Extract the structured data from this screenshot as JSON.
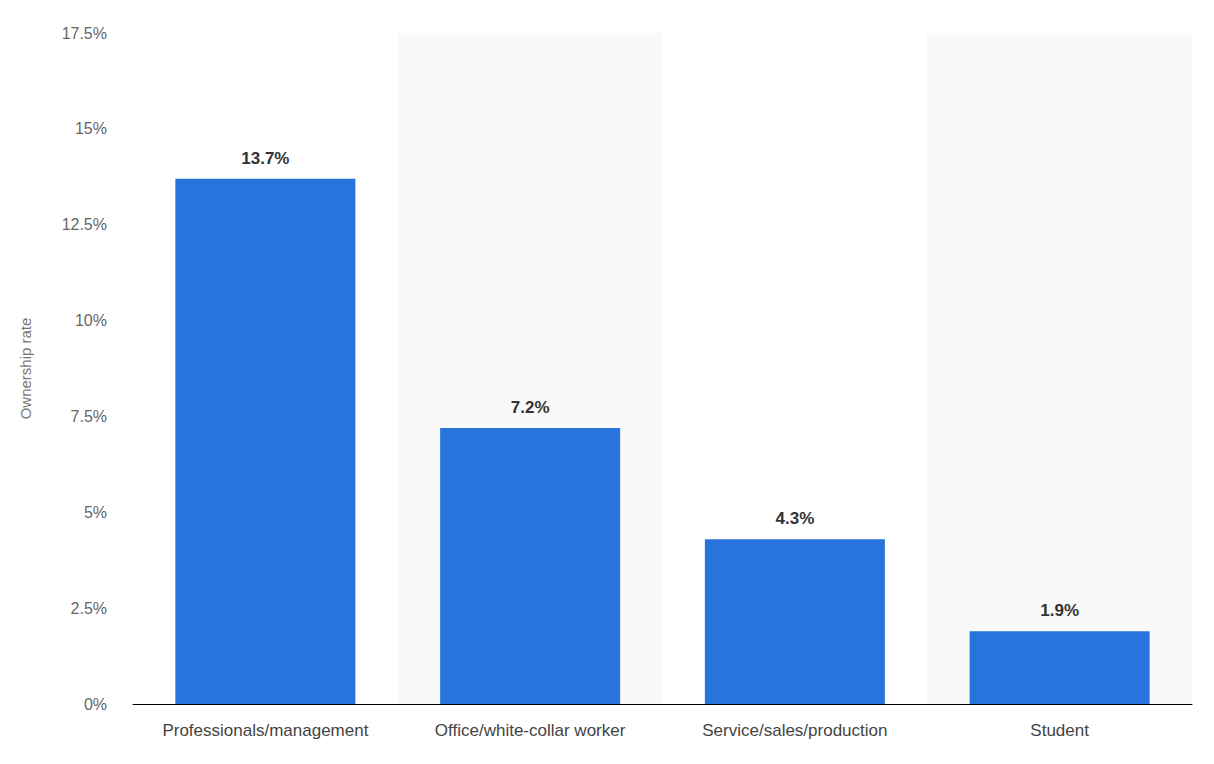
{
  "chart_data": {
    "type": "bar",
    "y_label": "Ownership rate",
    "categories": [
      "Professionals/management",
      "Office/white-collar worker",
      "Service/sales/production",
      "Student"
    ],
    "values": [
      13.7,
      7.2,
      4.3,
      1.9
    ],
    "value_labels": [
      "13.7%",
      "7.2%",
      "4.3%",
      "1.9%"
    ],
    "color": "#2874dc",
    "ylim": [
      0,
      17.5
    ],
    "yticks": [
      {
        "value": 0,
        "label": "0%"
      },
      {
        "value": 2.5,
        "label": "2.5%"
      },
      {
        "value": 5,
        "label": "5%"
      },
      {
        "value": 7.5,
        "label": "7.5%"
      },
      {
        "value": 10,
        "label": "10%"
      },
      {
        "value": 12.5,
        "label": "12.5%"
      },
      {
        "value": 15,
        "label": "15%"
      },
      {
        "value": 17.5,
        "label": "17.5%"
      }
    ],
    "grid": true,
    "data_labels": true
  }
}
